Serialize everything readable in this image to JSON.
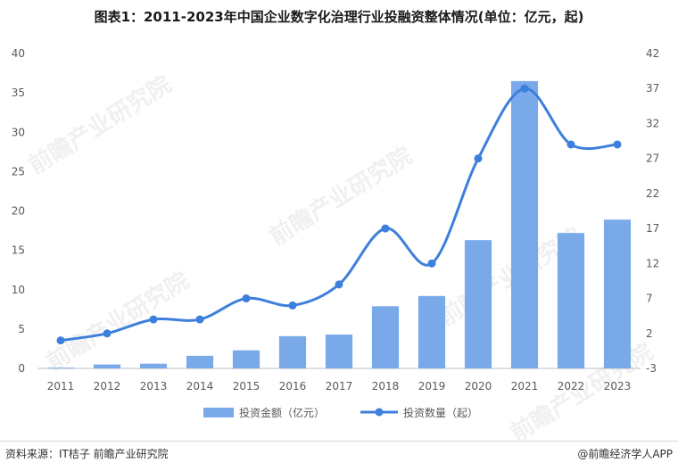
{
  "chart_data": {
    "type": "bar+line",
    "title": "图表1：2011-2023年中国企业数字化治理行业投融资整体情况(单位：亿元，起)",
    "categories": [
      "2011",
      "2012",
      "2013",
      "2014",
      "2015",
      "2016",
      "2017",
      "2018",
      "2019",
      "2020",
      "2021",
      "2022",
      "2023"
    ],
    "series": [
      {
        "name": "投资金额（亿元）",
        "type": "bar",
        "axis": "left",
        "values": [
          0.1,
          0.5,
          0.6,
          1.6,
          2.3,
          4.1,
          4.3,
          7.9,
          9.2,
          16.3,
          36.5,
          17.2,
          18.9
        ]
      },
      {
        "name": "投资数量（起）",
        "type": "line",
        "axis": "right",
        "values": [
          1,
          2,
          4,
          4,
          7,
          6,
          9,
          17,
          12,
          27,
          37,
          29,
          29
        ]
      }
    ],
    "y_left": {
      "min": 0,
      "max": 40,
      "ticks": [
        0,
        5,
        10,
        15,
        20,
        25,
        30,
        35,
        40
      ]
    },
    "y_right": {
      "min": -3,
      "max": 42,
      "ticks": [
        -3,
        2,
        7,
        12,
        17,
        22,
        27,
        32,
        37,
        42
      ]
    },
    "legend_position": "bottom",
    "grid": false
  },
  "footer": {
    "source": "资料来源：IT桔子 前瞻产业研究院",
    "brand": "@前瞻经济学人APP"
  },
  "colors": {
    "bar": "#7aa9ea",
    "line": "#3d7fdc",
    "axis": "#bfbfbf",
    "text": "#595959"
  },
  "watermark": "前瞻产业研究院"
}
